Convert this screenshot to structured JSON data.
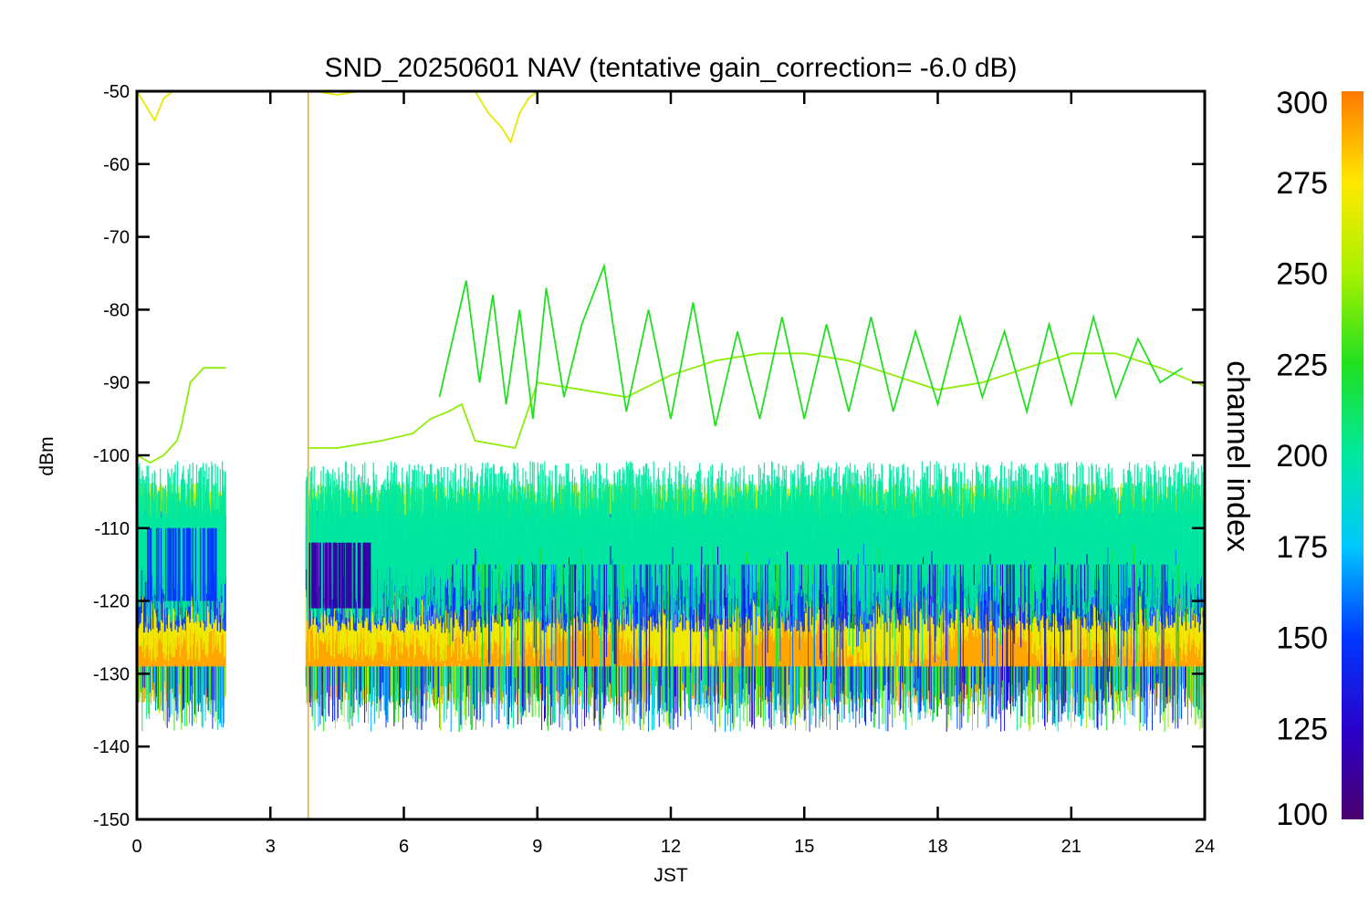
{
  "chart_data": {
    "type": "line",
    "title": "SND_20250601 NAV (tentative gain_correction= -6.0 dB)",
    "xlabel": "JST",
    "ylabel": "dBm",
    "xlim": [
      0,
      24
    ],
    "ylim": [
      -150,
      -50
    ],
    "xticks": [
      "0",
      "3",
      "6",
      "9",
      "12",
      "15",
      "18",
      "21",
      "24"
    ],
    "yticks": [
      "-50",
      "-60",
      "-70",
      "-80",
      "-90",
      "-100",
      "-110",
      "-120",
      "-130",
      "-140",
      "-150"
    ],
    "colorbar": {
      "label": "channel index",
      "range": [
        100,
        300
      ],
      "ticks": [
        "300",
        "275",
        "250",
        "225",
        "200",
        "175",
        "150",
        "125",
        "100"
      ],
      "colormap": "rainbow"
    },
    "data_gap": [
      2.0,
      3.8
    ],
    "spike_at": 3.85,
    "bands": [
      {
        "channel": 290,
        "center": -126,
        "spread": 6
      },
      {
        "channel": 270,
        "center": -120,
        "spread": 6
      },
      {
        "channel": 255,
        "center": -108,
        "spread": 3
      },
      {
        "channel": 150,
        "center": -116,
        "spread": 6
      },
      {
        "channel": 200,
        "center": -112,
        "spread": 8
      }
    ],
    "series": [
      {
        "channel": 245,
        "x": [
          0,
          0.3,
          0.6,
          0.9,
          1.0,
          1.2,
          1.5,
          2.0,
          3.85,
          4.5,
          5.5,
          6.2,
          6.6,
          7.0,
          7.3,
          7.6,
          8.5,
          9.0,
          10.0,
          11.0,
          12.0,
          13.0,
          14.0,
          15.0,
          16.0,
          17.0,
          18.0,
          19.0,
          20.0,
          21.0,
          22.0,
          23.0,
          24.0
        ],
        "y": [
          -100,
          -101,
          -100,
          -98,
          -96,
          -90,
          -88,
          -88,
          -99,
          -99,
          -98,
          -97,
          -95,
          -94,
          -93,
          -98,
          -99,
          -90,
          -91,
          -92,
          -89,
          -87,
          -86,
          -86,
          -87,
          -89,
          -91,
          -90,
          -88,
          -86,
          -86,
          -88,
          -90.5
        ]
      },
      {
        "channel": 225,
        "x": [
          6.8,
          7.1,
          7.4,
          7.7,
          8.0,
          8.3,
          8.6,
          8.9,
          9.2,
          9.6,
          10.0,
          10.5,
          11.0,
          11.5,
          12.0,
          12.5,
          13.0,
          13.5,
          14.0,
          14.5,
          15.0,
          15.5,
          16.0,
          16.5,
          17.0,
          17.5,
          18.0,
          18.5,
          19.0,
          19.5,
          20.0,
          20.5,
          21.0,
          21.5,
          22.0,
          22.5,
          23.0,
          23.5
        ],
        "y": [
          -92,
          -84,
          -76,
          -90,
          -78,
          -93,
          -80,
          -95,
          -77,
          -92,
          -82,
          -74,
          -94,
          -80,
          -95,
          -79,
          -96,
          -83,
          -95,
          -81,
          -95,
          -82,
          -94,
          -81,
          -94,
          -83,
          -93,
          -81,
          -92,
          -83,
          -94,
          -82,
          -93,
          -81,
          -92,
          -84,
          -90,
          -88
        ]
      },
      {
        "channel": 268,
        "x": [
          0,
          0.2,
          0.4,
          0.6,
          0.8
        ],
        "y": [
          -50,
          -52,
          -54,
          -51,
          -50
        ]
      },
      {
        "channel": 268,
        "x": [
          4.0,
          4.5,
          5.0,
          5.2
        ],
        "y": [
          -50,
          -50.5,
          -50,
          -50
        ]
      },
      {
        "channel": 268,
        "x": [
          7.6,
          7.9,
          8.2,
          8.4,
          8.6,
          8.8,
          9.0
        ],
        "y": [
          -50,
          -53,
          -55,
          -57,
          -53,
          -51,
          -50
        ]
      }
    ]
  }
}
